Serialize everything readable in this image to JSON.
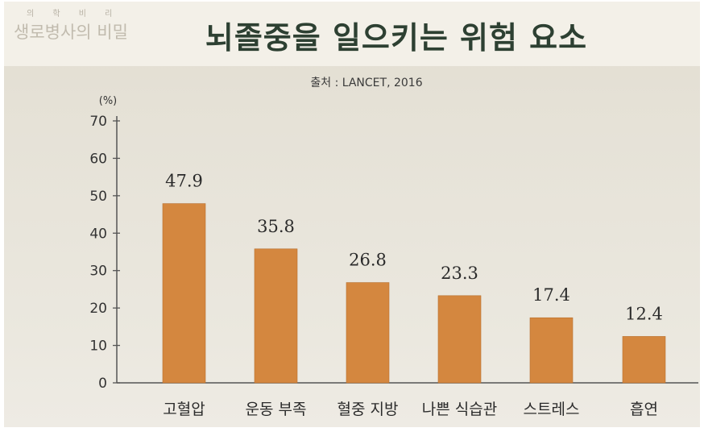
{
  "logo": {
    "small": "의 학 비 리",
    "text": "생로병사의 비밀"
  },
  "header": {
    "title": "뇌졸중을 일으키는 위험 요소"
  },
  "chart_data": {
    "type": "bar",
    "title": "뇌졸중을 일으키는 위험 요소",
    "source": "출처 : LANCET, 2016",
    "ylabel": "(%)",
    "ylim": [
      0,
      70
    ],
    "yticks": [
      0,
      10,
      20,
      30,
      40,
      50,
      60,
      70
    ],
    "categories": [
      "고혈압",
      "운동 부족",
      "혈중 지방",
      "나쁜 식습관",
      "스트레스",
      "흡연"
    ],
    "values": [
      47.9,
      35.8,
      26.8,
      23.3,
      17.4,
      12.4
    ],
    "value_labels": [
      "47.9",
      "35.8",
      "26.8",
      "23.3",
      "17.4",
      "12.4"
    ],
    "bar_color": "#d4873f",
    "grid": false
  }
}
